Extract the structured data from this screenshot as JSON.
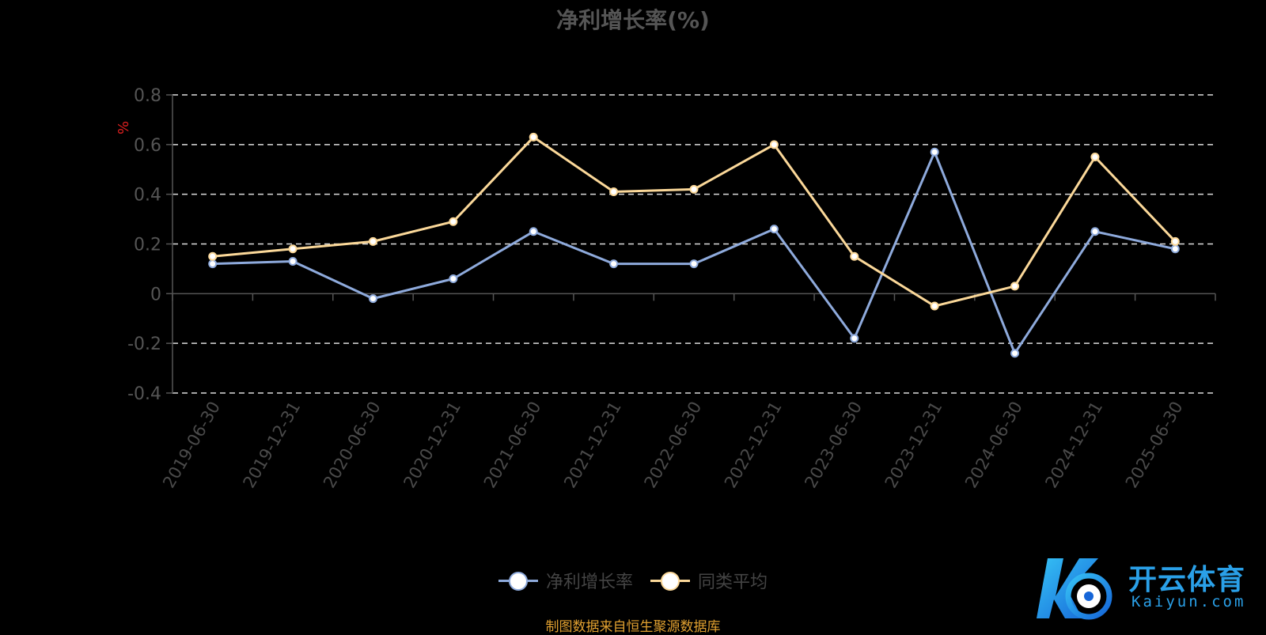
{
  "chart_data": {
    "type": "line",
    "title": "净利增长率(%)",
    "ylabel": "%",
    "xlabel": "",
    "ylim": [
      -0.4,
      0.8
    ],
    "yticks": [
      "0.8",
      "0.6",
      "0.4",
      "0.2",
      "0",
      "-0.2",
      "-0.4"
    ],
    "yticks_values": [
      0.8,
      0.6,
      0.4,
      0.2,
      0,
      -0.2,
      -0.4
    ],
    "categories": [
      "2019-06-30",
      "2019-12-31",
      "2020-06-30",
      "2020-12-31",
      "2021-06-30",
      "2021-12-31",
      "2022-06-30",
      "2022-12-31",
      "2023-06-30",
      "2023-12-31",
      "2024-06-30",
      "2024-12-31",
      "2025-06-30"
    ],
    "series": [
      {
        "name": "净利增长率",
        "color": "#8eaadc",
        "values": [
          0.12,
          0.13,
          -0.02,
          0.06,
          0.25,
          0.12,
          0.12,
          0.26,
          -0.18,
          0.57,
          -0.24,
          0.25,
          0.18
        ]
      },
      {
        "name": "同类平均",
        "color": "#fbd899",
        "values": [
          0.15,
          0.18,
          0.21,
          0.29,
          0.63,
          0.41,
          0.42,
          0.6,
          0.15,
          -0.05,
          0.03,
          0.55,
          0.21
        ]
      }
    ],
    "grid": true,
    "legend_position": "bottom"
  },
  "source_note": "制图数据来自恒生聚源数据库",
  "logo": {
    "cn": "开云体育",
    "en": "Kaiyun.com",
    "mark": "K"
  }
}
